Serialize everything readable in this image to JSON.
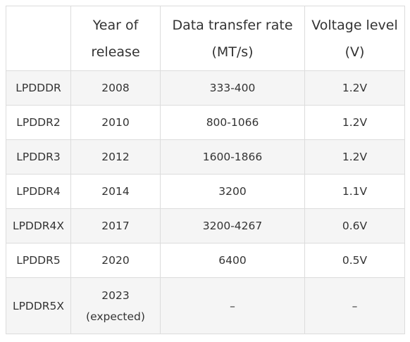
{
  "table": {
    "headers": [
      {
        "lines": [
          ""
        ]
      },
      {
        "lines": [
          "Year of",
          "release"
        ]
      },
      {
        "lines": [
          "Data transfer rate",
          "(MT/s)"
        ]
      },
      {
        "lines": [
          "Voltage level",
          "(V)"
        ]
      }
    ],
    "rows": [
      {
        "name": "LPDDDR",
        "year": [
          "2008"
        ],
        "rate": "333-400",
        "voltage": "1.2V"
      },
      {
        "name": "LPDDR2",
        "year": [
          "2010"
        ],
        "rate": "800-1066",
        "voltage": "1.2V"
      },
      {
        "name": "LPDDR3",
        "year": [
          "2012"
        ],
        "rate": "1600-1866",
        "voltage": "1.2V"
      },
      {
        "name": "LPDDR4",
        "year": [
          "2014"
        ],
        "rate": "3200",
        "voltage": "1.1V"
      },
      {
        "name": "LPDDR4X",
        "year": [
          "2017"
        ],
        "rate": "3200-4267",
        "voltage": "0.6V"
      },
      {
        "name": "LPDDR5",
        "year": [
          "2020"
        ],
        "rate": "6400",
        "voltage": "0.5V"
      },
      {
        "name": "LPDDR5X",
        "year": [
          "2023",
          "(expected)"
        ],
        "rate": "–",
        "voltage": "–"
      }
    ]
  }
}
